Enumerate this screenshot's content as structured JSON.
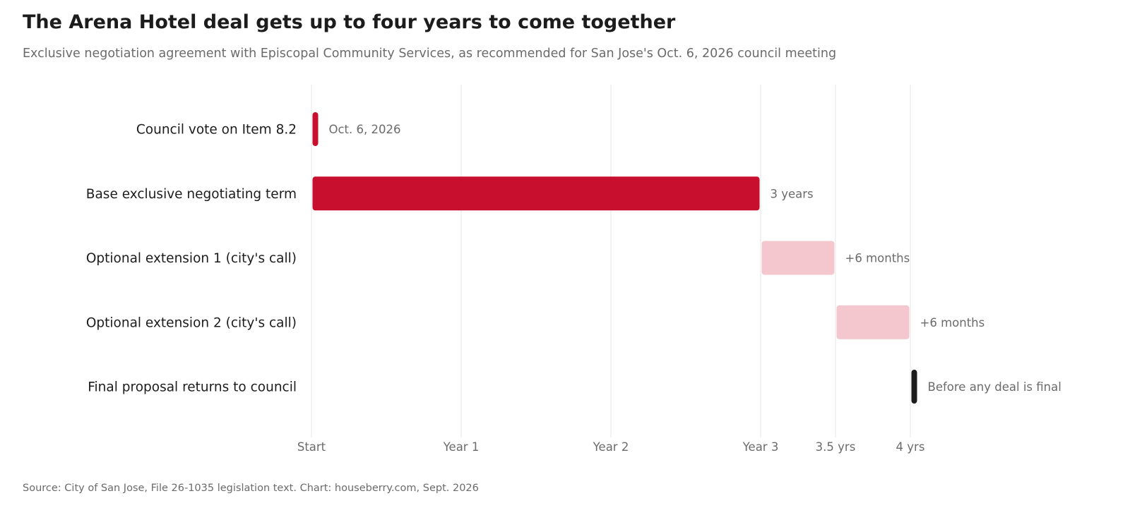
{
  "header": {
    "title": "The Arena Hotel deal gets up to four years to come together",
    "subtitle": "Exclusive negotiation agreement with Episcopal Community Services, as recommended for San Jose's Oct. 6, 2026 council meeting"
  },
  "footer": {
    "source": "Source: City of San Jose, File 26-1035 legislation text. Chart: houseberry.com, Sept. 2026"
  },
  "chart_data": {
    "type": "bar",
    "orientation": "horizontal-timeline",
    "xlim": [
      0,
      4
    ],
    "grid": true,
    "x_ticks": [
      {
        "value": 0,
        "label": "Start"
      },
      {
        "value": 1,
        "label": "Year 1"
      },
      {
        "value": 2,
        "label": "Year 2"
      },
      {
        "value": 3,
        "label": "Year 3"
      },
      {
        "value": 3.5,
        "label": "3.5 yrs"
      },
      {
        "value": 4,
        "label": "4 yrs"
      }
    ],
    "rows": [
      {
        "category": "Council vote on Item 8.2",
        "start": 0,
        "end": 0.04,
        "label": "Oct. 6, 2026",
        "color": "#c8102e"
      },
      {
        "category": "Base exclusive negotiating term",
        "start": 0,
        "end": 3,
        "label": "3 years",
        "color": "#c8102e"
      },
      {
        "category": "Optional extension 1 (city's call)",
        "start": 3,
        "end": 3.5,
        "label": "+6 months",
        "color": "#f4c6cd"
      },
      {
        "category": "Optional extension 2 (city's call)",
        "start": 3.5,
        "end": 4,
        "label": "+6 months",
        "color": "#f4c6cd"
      },
      {
        "category": "Final proposal returns to council",
        "start": 4,
        "end": 4.04,
        "label": "Before any deal is final",
        "color": "#1c1c1c"
      }
    ]
  }
}
